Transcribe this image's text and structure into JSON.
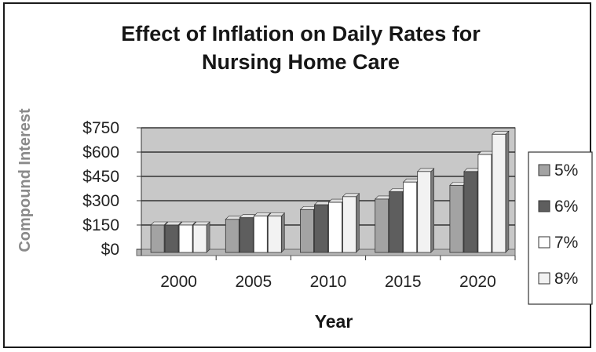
{
  "chart_data": {
    "type": "bar",
    "title_lines": [
      "Effect of Inflation on Daily Rates for",
      "Nursing Home Care"
    ],
    "xlabel": "Year",
    "ylabel": "Compound Interest",
    "categories": [
      "2000",
      "2005",
      "2010",
      "2015",
      "2020"
    ],
    "y_ticks": [
      "$0",
      "$150",
      "$300",
      "$450",
      "$600",
      "$750"
    ],
    "ylim": [
      0,
      750
    ],
    "grid": true,
    "legend_position": "right",
    "series": [
      {
        "name": "5%",
        "color": "#a3a3a3",
        "values": [
          150,
          185,
          245,
          310,
          395
        ]
      },
      {
        "name": "6%",
        "color": "#5e5e5e",
        "values": [
          150,
          195,
          275,
          355,
          480
        ]
      },
      {
        "name": "7%",
        "color": "#ffffff",
        "values": [
          150,
          205,
          290,
          415,
          585
        ]
      },
      {
        "name": "8%",
        "color": "#f2f2f2",
        "values": [
          150,
          205,
          325,
          480,
          710
        ]
      }
    ],
    "plot_background": "#c8c8c8"
  }
}
